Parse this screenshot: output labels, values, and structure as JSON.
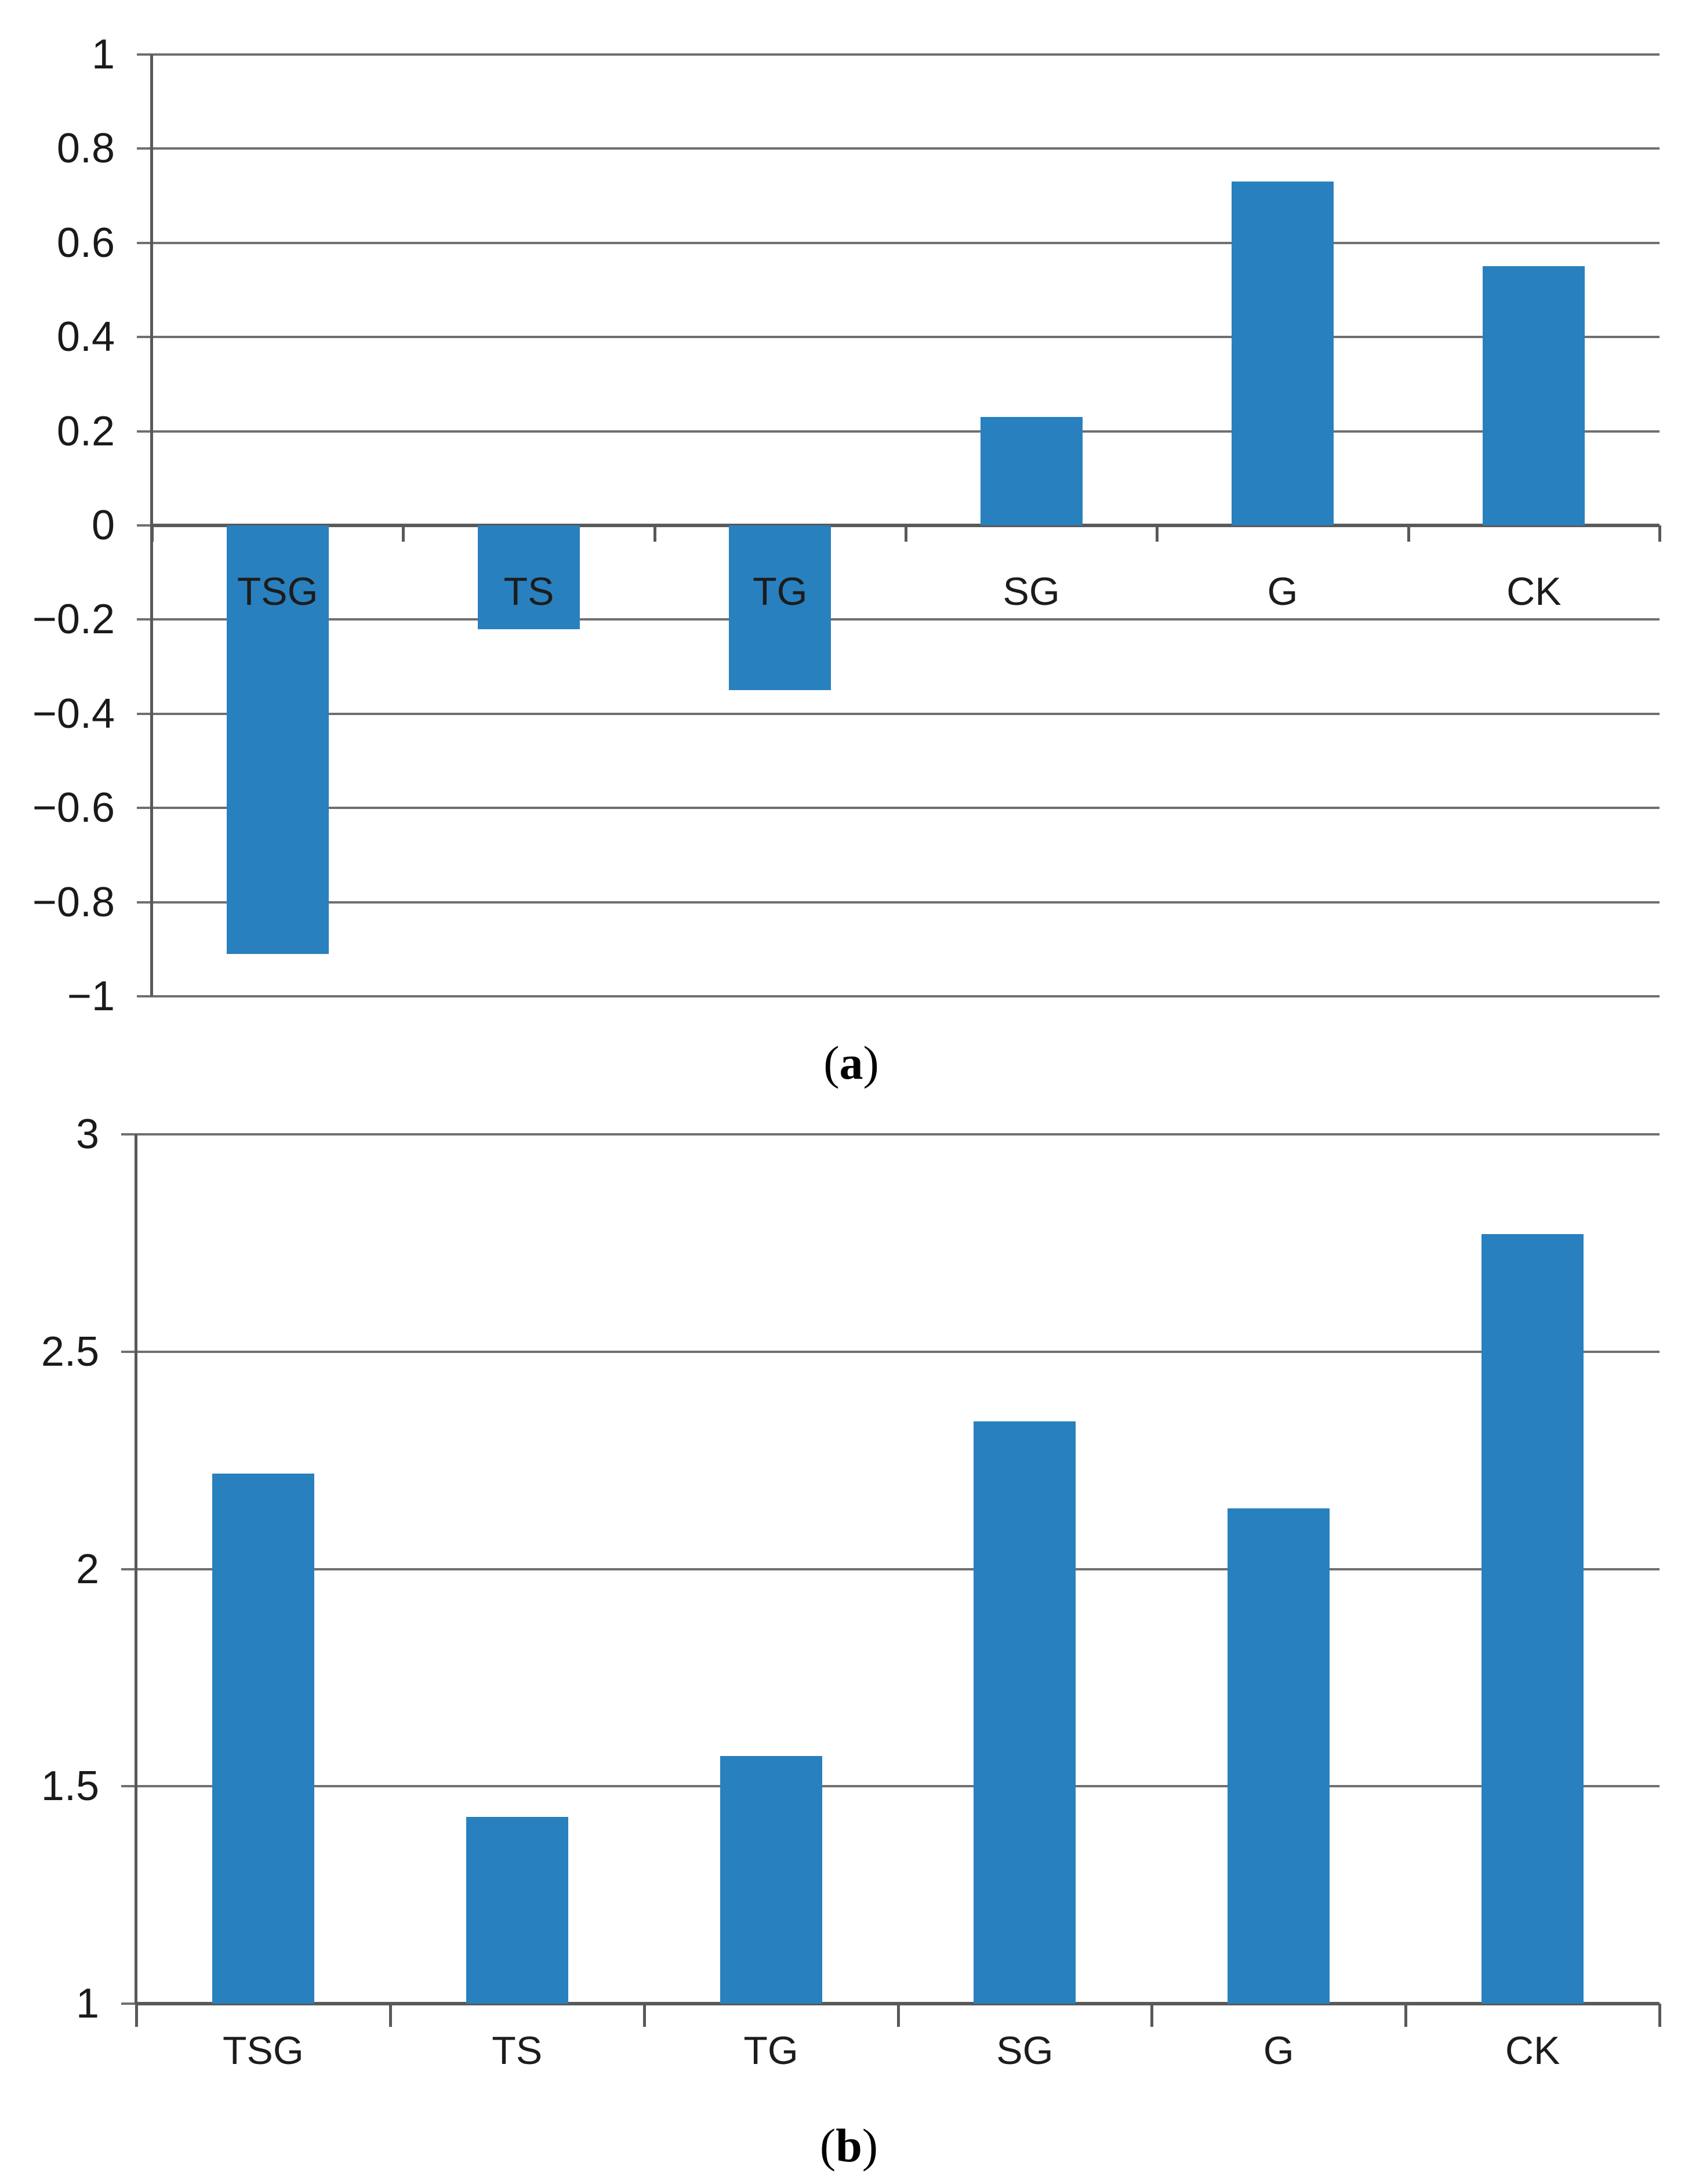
{
  "figure": {
    "background": "#ffffff",
    "bar_color": "#2980BE",
    "gridline_color": "#6F6F6F",
    "axis_color": "#595959",
    "text_color": "#1A1A1A"
  },
  "chart_data": [
    {
      "id": "a",
      "type": "bar",
      "title": "",
      "xlabel": "",
      "ylabel": "",
      "categories": [
        "TSG",
        "TS",
        "TG",
        "SG",
        "G",
        "CK"
      ],
      "values": [
        -0.91,
        -0.22,
        -0.35,
        0.23,
        0.73,
        0.55
      ],
      "ylim": [
        -1,
        1
      ],
      "ytick_step": 0.2,
      "yticks": [
        {
          "v": 1,
          "label": "1"
        },
        {
          "v": 0.8,
          "label": "0.8"
        },
        {
          "v": 0.6,
          "label": "0.6"
        },
        {
          "v": 0.4,
          "label": "0.4"
        },
        {
          "v": 0.2,
          "label": "0.2"
        },
        {
          "v": 0,
          "label": "0"
        },
        {
          "v": -0.2,
          "label": "−0.2"
        },
        {
          "v": -0.4,
          "label": "−0.4"
        },
        {
          "v": -0.6,
          "label": "−0.6"
        },
        {
          "v": -0.8,
          "label": "−0.8"
        },
        {
          "v": -1,
          "label": "−1"
        }
      ],
      "baseline_value": 0,
      "grid": true,
      "legend": "none",
      "caption": {
        "open": "(",
        "letter": "a",
        "close": ")"
      }
    },
    {
      "id": "b",
      "type": "bar",
      "title": "",
      "xlabel": "",
      "ylabel": "",
      "categories": [
        "TSG",
        "TS",
        "TG",
        "SG",
        "G",
        "CK"
      ],
      "values": [
        2.22,
        1.43,
        1.57,
        2.34,
        2.14,
        2.77
      ],
      "ylim": [
        1,
        3
      ],
      "ytick_step": 0.5,
      "yticks": [
        {
          "v": 3,
          "label": "3"
        },
        {
          "v": 2.5,
          "label": "2.5"
        },
        {
          "v": 2,
          "label": "2"
        },
        {
          "v": 1.5,
          "label": "1.5"
        },
        {
          "v": 1,
          "label": "1"
        }
      ],
      "baseline_value": 1,
      "grid": true,
      "legend": "none",
      "caption": {
        "open": "(",
        "letter": "b",
        "close": ")"
      }
    }
  ]
}
